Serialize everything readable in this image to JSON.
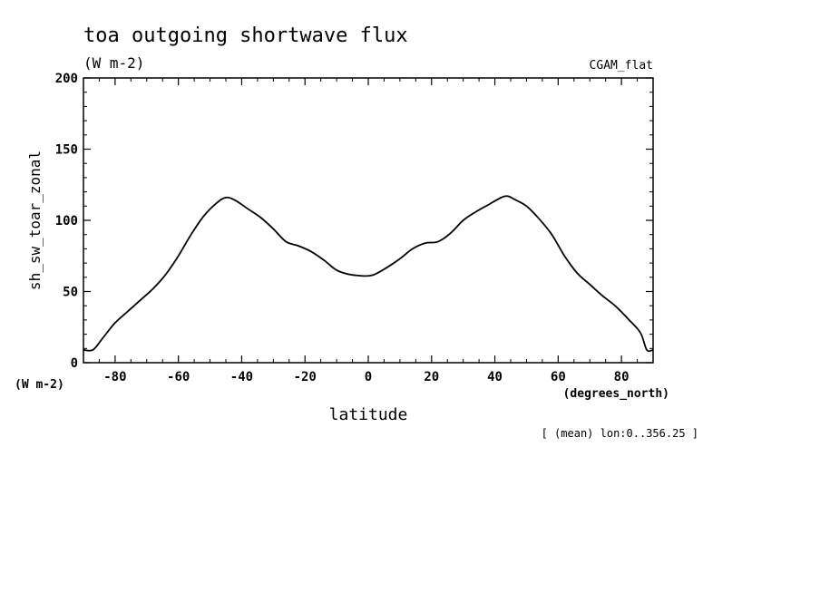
{
  "chart_data": {
    "type": "line",
    "title": "toa outgoing shortwave flux",
    "subtitle": "(W m-2)",
    "dataset_label": "CGAM_flat",
    "xlabel": "latitude",
    "xunits": "(degrees_north)",
    "ylabel": "sh_sw_toar_zonal",
    "yunits": "(W m-2)",
    "annotation": "[ (mean) lon:0..356.25 ]",
    "xlim": [
      -90,
      90
    ],
    "ylim": [
      0,
      200
    ],
    "xticks": [
      -80,
      -60,
      -40,
      -20,
      0,
      20,
      40,
      60,
      80
    ],
    "yticks": [
      0,
      50,
      100,
      150,
      200
    ],
    "xtick_labels": [
      "-80",
      "-60",
      "-40",
      "-20",
      "0",
      "20",
      "40",
      "60",
      "80"
    ],
    "ytick_labels": [
      "0",
      "50",
      "100",
      "150",
      "200"
    ],
    "grid": false,
    "series": [
      {
        "x": [
          -90,
          -87,
          -84,
          -80,
          -76,
          -72,
          -68,
          -64,
          -60,
          -56,
          -52,
          -48,
          -45,
          -42,
          -38,
          -34,
          -30,
          -26,
          -22,
          -18,
          -14,
          -10,
          -6,
          -2,
          0,
          2,
          6,
          10,
          14,
          18,
          22,
          26,
          30,
          34,
          38,
          42,
          44,
          46,
          50,
          54,
          58,
          62,
          66,
          70,
          74,
          78,
          82,
          86,
          88,
          90
        ],
        "y": [
          9,
          9,
          17,
          28,
          36,
          44,
          52,
          62,
          75,
          90,
          103,
          112,
          116,
          114,
          108,
          102,
          94,
          85,
          82,
          78,
          72,
          65,
          62,
          61,
          61,
          62,
          67,
          73,
          80,
          84,
          85,
          91,
          100,
          106,
          111,
          116,
          117,
          115,
          110,
          101,
          90,
          75,
          63,
          55,
          47,
          40,
          31,
          21,
          9,
          9
        ]
      }
    ]
  }
}
